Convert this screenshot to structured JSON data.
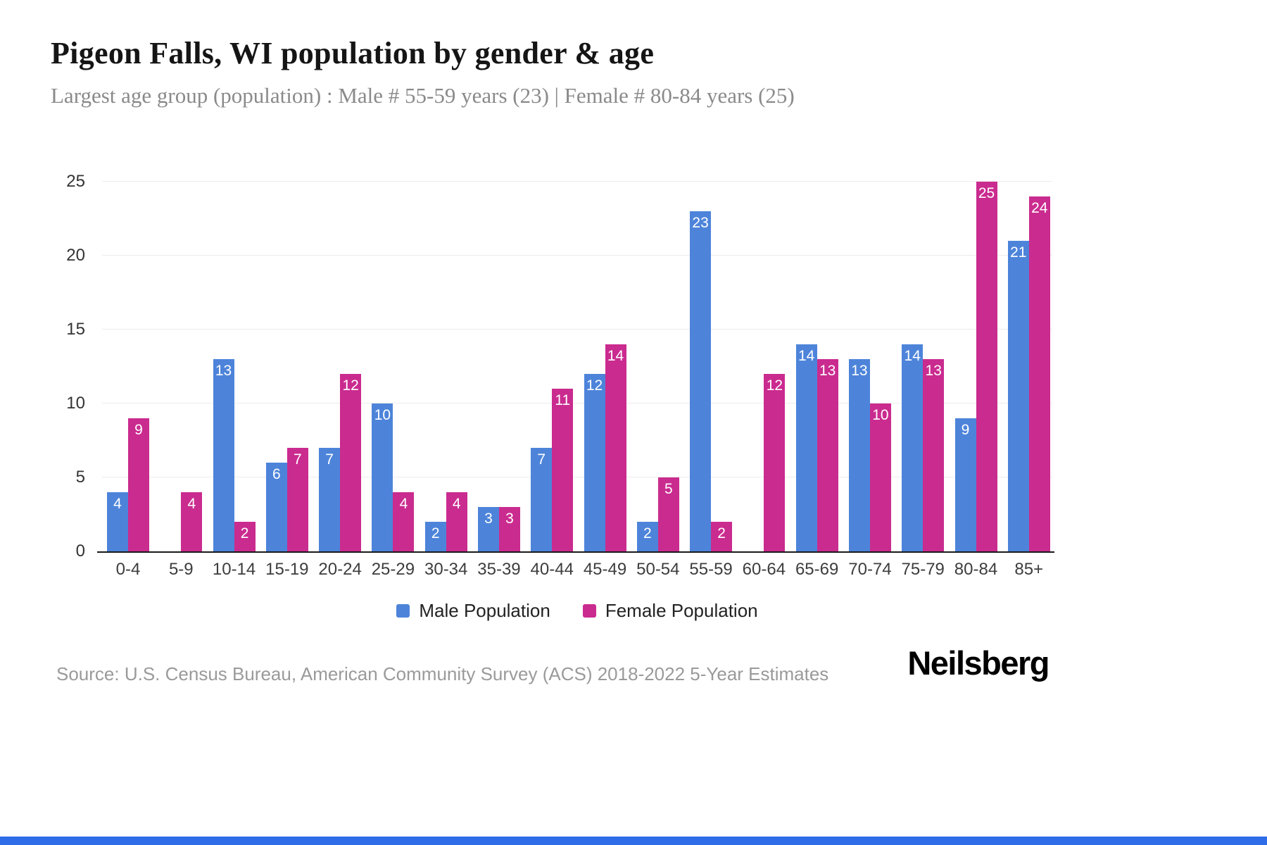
{
  "page": {
    "title": "Pigeon Falls, WI population by gender & age",
    "subtitle": "Largest age group (population) : Male # 55-59 years (23) | Female # 80-84 years (25)",
    "source": "Source: U.S. Census Bureau, American Community Survey (ACS) 2018-2022 5-Year Estimates",
    "brand": "Neilsberg"
  },
  "colors": {
    "male": "#4d84da",
    "female": "#ca2b8f",
    "accent_strip": "#2f6de8",
    "gridline": "#ececec",
    "axis_line": "#1a1a1a"
  },
  "chart_data": {
    "type": "bar",
    "title": "Pigeon Falls, WI population by gender & age",
    "subtitle": "Largest age group (population) : Male # 55-59 years (23) | Female # 80-84 years (25)",
    "categories": [
      "0-4",
      "5-9",
      "10-14",
      "15-19",
      "20-24",
      "25-29",
      "30-34",
      "35-39",
      "40-44",
      "45-49",
      "50-54",
      "55-59",
      "60-64",
      "65-69",
      "70-74",
      "75-79",
      "80-84",
      "85+"
    ],
    "series": [
      {
        "name": "Male Population",
        "color": "#4d84da",
        "values": [
          4,
          0,
          13,
          6,
          7,
          10,
          2,
          3,
          7,
          12,
          2,
          23,
          0,
          14,
          13,
          14,
          9,
          21
        ]
      },
      {
        "name": "Female Population",
        "color": "#ca2b8f",
        "values": [
          9,
          4,
          2,
          7,
          12,
          4,
          4,
          3,
          11,
          14,
          5,
          2,
          12,
          13,
          10,
          13,
          25,
          24
        ]
      }
    ],
    "xlabel": "",
    "ylabel": "",
    "ylim": [
      0,
      25
    ],
    "yticks": [
      0,
      5,
      10,
      15,
      20,
      25
    ],
    "grid": true,
    "legend_position": "bottom",
    "bar_value_labels": true
  }
}
